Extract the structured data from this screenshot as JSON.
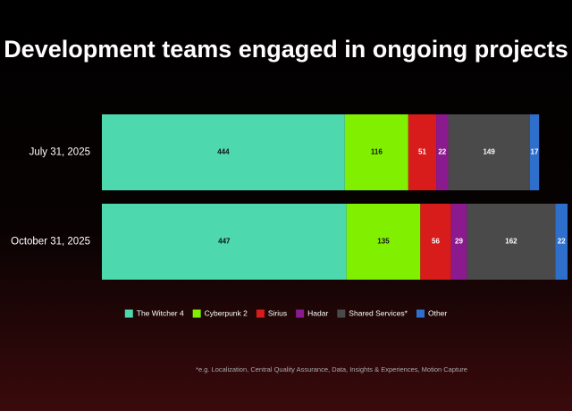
{
  "chart_data": {
    "type": "stacked-bar-horizontal",
    "title": "Development teams engaged in ongoing projects",
    "categories": [
      "July 31, 2025",
      "October 31, 2025"
    ],
    "series": [
      {
        "name": "The Witcher 4",
        "color": "#4dd9ad",
        "values": [
          444,
          447
        ]
      },
      {
        "name": "Cyberpunk 2",
        "color": "#80f000",
        "values": [
          116,
          135
        ]
      },
      {
        "name": "Sirius",
        "color": "#d81b1b",
        "values": [
          51,
          56
        ]
      },
      {
        "name": "Hadar",
        "color": "#8b1a8e",
        "values": [
          22,
          29
        ]
      },
      {
        "name": "Shared Services*",
        "color": "#4a4a4a",
        "values": [
          149,
          162
        ]
      },
      {
        "name": "Other",
        "color": "#2f6fcc",
        "values": [
          17,
          22
        ]
      }
    ],
    "legend": "bottom",
    "footnote": "*e.g. Localization, Central Quality Assurance, Data, Insights & Experiences, Motion Capture"
  }
}
